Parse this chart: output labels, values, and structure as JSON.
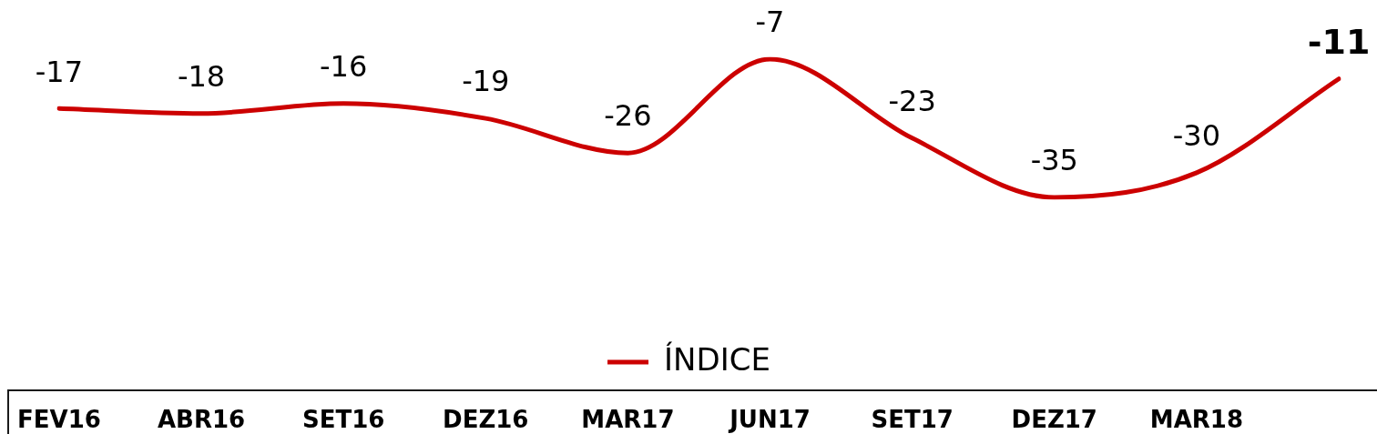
{
  "chart_data": {
    "type": "line",
    "categories": [
      "FEV16",
      "ABR16",
      "SET16",
      "DEZ16",
      "MAR17",
      "JUN17",
      "SET17",
      "DEZ17",
      "MAR18",
      null
    ],
    "series": [
      {
        "name": "ÍNDICE",
        "color": "#cc0000",
        "values": [
          -17,
          -18,
          -16,
          -19,
          -26,
          -7,
          -23,
          -35,
          -30,
          -11
        ]
      }
    ],
    "data_labels": true,
    "legend": "bottom",
    "marker": "none",
    "line_style": "solid",
    "grid": false,
    "tick_labels": "x"
  }
}
